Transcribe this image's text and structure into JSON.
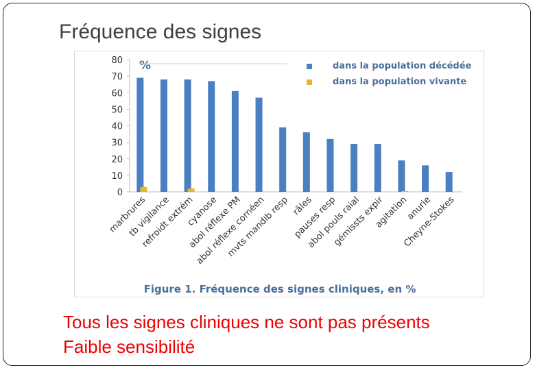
{
  "slide": {
    "title": "Fréquence des signes",
    "footer_line_1": "Tous les signes cliniques ne sont pas présents",
    "footer_line_2": "Faible sensibilité"
  },
  "colors": {
    "series_1": "#4a7fc1",
    "series_2": "#e8b828",
    "text_red": "#ee0000",
    "chart_text": "#4a6f9a"
  },
  "chart_data": {
    "type": "bar",
    "title": "Figure 1. Fréquence des signes cliniques, en %",
    "ylabel": "%",
    "xlabel": "",
    "ylim": [
      0,
      80
    ],
    "yticks": [
      0,
      10,
      20,
      30,
      40,
      50,
      60,
      70,
      80
    ],
    "grid": false,
    "legend_position": "top-right",
    "categories": [
      "marbrures",
      "tb vigilance",
      "refroidt extrém",
      "cyanose",
      "abol réflexe PM",
      "abol réflexe cornéen",
      "mvts mandib resp",
      "râles",
      "pauses resp",
      "abol pouls raial",
      "gémissts expir",
      "agitation",
      "anurie",
      "Cheyne-Stokes"
    ],
    "series": [
      {
        "name": "dans la population décédée",
        "values": [
          69,
          68,
          68,
          67,
          61,
          57,
          39,
          36,
          32,
          29,
          29,
          19,
          16,
          12
        ]
      },
      {
        "name": "dans la population vivante",
        "values": [
          3,
          0,
          2,
          0,
          0,
          0,
          0,
          0,
          0,
          0,
          0,
          0.5,
          0,
          0
        ]
      }
    ]
  }
}
